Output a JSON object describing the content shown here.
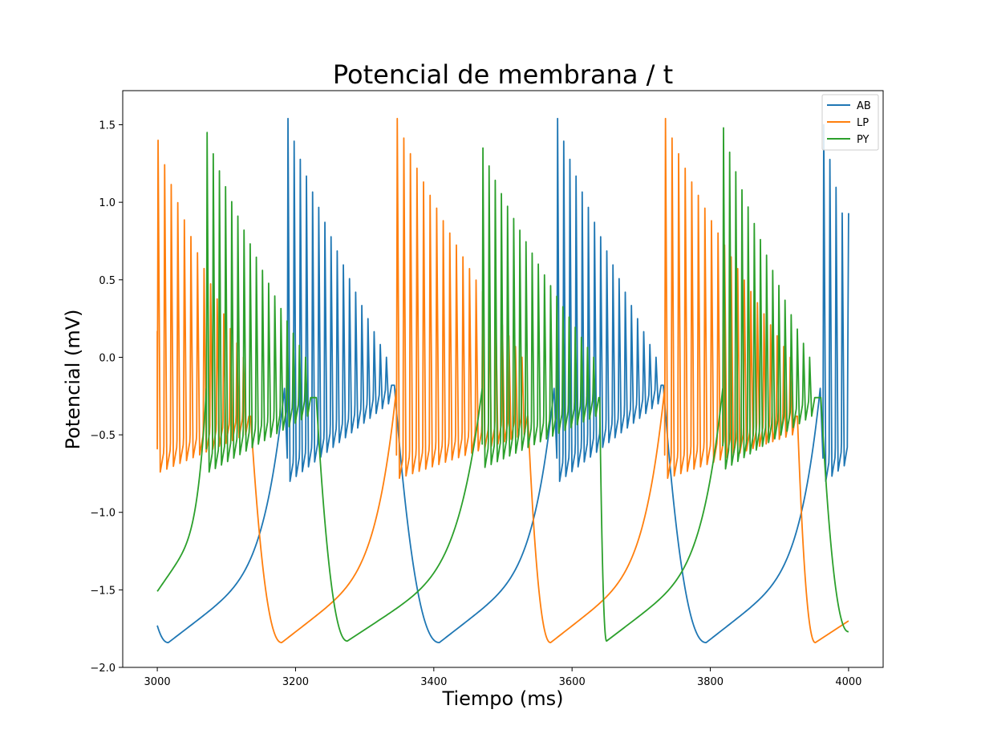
{
  "chart_data": {
    "type": "line",
    "title": "Potencial de membrana / t",
    "xlabel": "Tiempo (ms)",
    "ylabel": "Potencial (mV)",
    "xlim": [
      2950,
      4050
    ],
    "ylim": [
      -2.0,
      1.72
    ],
    "xticks": [
      3000,
      3200,
      3400,
      3600,
      3800,
      4000
    ],
    "xtick_labels": [
      "3000",
      "3200",
      "3400",
      "3600",
      "3800",
      "4000"
    ],
    "yticks": [
      -2.0,
      -1.5,
      -1.0,
      -0.5,
      0.0,
      0.5,
      1.0,
      1.5
    ],
    "ytick_labels": [
      "−2.0",
      "−1.5",
      "−1.0",
      "−0.5",
      "0.0",
      "0.5",
      "1.0",
      "1.5"
    ],
    "grid": false,
    "legend_position": "top-right",
    "series": [
      {
        "name": "AB",
        "color": "#1f77b4",
        "bursts": [
          {
            "start": 3188,
            "end": 3343,
            "isi": 8.9,
            "amp_first": 1.54,
            "amp_last": 0.0,
            "trough_first": -0.8,
            "trough_last": -0.3
          },
          {
            "start": 3578,
            "end": 3732,
            "isi": 8.9,
            "amp_first": 1.54,
            "amp_last": 0.0,
            "trough_first": -0.8,
            "trough_last": -0.3
          },
          {
            "start": 3963,
            "end": 4000,
            "isi": 8.9,
            "amp_first": 1.5,
            "amp_last": 0.93,
            "trough_first": -0.8,
            "trough_last": -0.7
          }
        ],
        "hyperpolarizations": [
          {
            "start": 3000,
            "min_t": 3016,
            "min_v": -1.84,
            "end": 3184,
            "start_v": -1.73
          },
          {
            "start": 3343,
            "min_t": 3408,
            "min_v": -1.84,
            "end": 3574
          },
          {
            "start": 3732,
            "min_t": 3794,
            "min_v": -1.84,
            "end": 3959
          }
        ],
        "end_value": 0.93
      },
      {
        "name": "LP",
        "color": "#ff7f0e",
        "bursts": [
          {
            "start": 3000,
            "end": 3135,
            "isi": 9.5,
            "amp_first": 1.4,
            "amp_last": 0.0,
            "trough_first": -0.74,
            "trough_last": -0.5
          },
          {
            "start": 3346,
            "end": 3536,
            "isi": 9.5,
            "amp_first": 1.54,
            "amp_last": 0.0,
            "trough_first": -0.78,
            "trough_last": -0.5
          },
          {
            "start": 3734,
            "end": 3926,
            "isi": 9.5,
            "amp_first": 1.54,
            "amp_last": 0.0,
            "trough_first": -0.78,
            "trough_last": -0.5
          }
        ],
        "hyperpolarizations": [
          {
            "start": 3135,
            "min_t": 3180,
            "min_v": -1.84,
            "end": 3346
          },
          {
            "start": 3536,
            "min_t": 3569,
            "min_v": -1.84,
            "end": 3734
          },
          {
            "start": 3926,
            "min_t": 3952,
            "min_v": -1.84,
            "end": 4000,
            "end_v": -1.7
          }
        ],
        "start_value": 0.17,
        "end_value": -1.7
      },
      {
        "name": "PY",
        "color": "#2ca02c",
        "bursts": [
          {
            "start": 3071,
            "end": 3230,
            "isi": 8.9,
            "amp_first": 1.45,
            "amp_last": 0.0,
            "trough_first": -0.74,
            "trough_last": -0.38
          },
          {
            "start": 3470,
            "end": 3640,
            "isi": 8.9,
            "amp_first": 1.35,
            "amp_last": 0.0,
            "trough_first": -0.71,
            "trough_last": -0.38
          },
          {
            "start": 3818,
            "end": 3960,
            "isi": 8.9,
            "amp_first": 1.48,
            "amp_last": 0.0,
            "trough_first": -0.72,
            "trough_last": -0.38
          }
        ],
        "hyperpolarizations": [
          {
            "start": 3000,
            "min_t": 3000,
            "min_v": -1.51,
            "end": 3071,
            "start_v": -1.51
          },
          {
            "start": 3230,
            "min_t": 3275,
            "min_v": -1.83,
            "end": 3470
          },
          {
            "start": 3640,
            "min_t": 3650,
            "min_v": -1.83,
            "end": 3818
          },
          {
            "start": 3960,
            "min_t": 4000,
            "min_v": -1.77,
            "end": 4000
          }
        ],
        "end_value": -1.77
      }
    ]
  }
}
